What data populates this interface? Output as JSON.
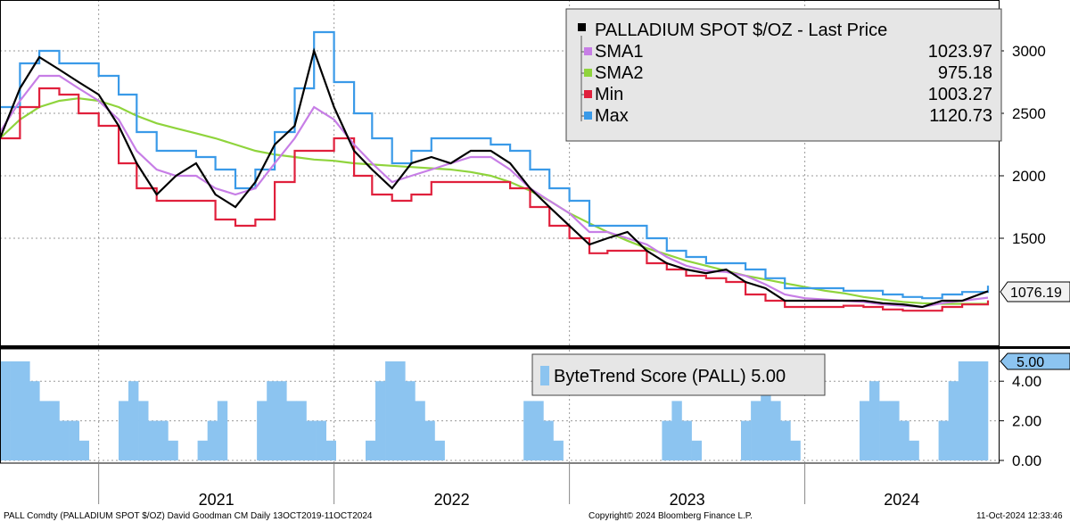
{
  "chart_data": [
    {
      "type": "line",
      "title": "PALLADIUM SPOT $/OZ - Last Price",
      "y_ticks": [
        "3000",
        "2500",
        "2000",
        "1500"
      ],
      "ylim": [
        850,
        3200
      ],
      "x_ticks": [
        "2021",
        "2022",
        "2023",
        "2024"
      ],
      "x": [
        "2020-08-01",
        "2020-09-01",
        "2020-10-01",
        "2020-11-01",
        "2020-12-01",
        "2021-01-01",
        "2021-02-01",
        "2021-03-01",
        "2021-04-01",
        "2021-05-01",
        "2021-06-01",
        "2021-07-01",
        "2021-08-01",
        "2021-09-01",
        "2021-10-01",
        "2021-11-01",
        "2021-12-01",
        "2022-01-01",
        "2022-02-01",
        "2022-03-01",
        "2022-04-01",
        "2022-05-01",
        "2022-06-01",
        "2022-07-01",
        "2022-08-01",
        "2022-09-01",
        "2022-10-01",
        "2022-11-01",
        "2022-12-01",
        "2023-01-01",
        "2023-02-01",
        "2023-03-01",
        "2023-04-01",
        "2023-05-01",
        "2023-06-01",
        "2023-07-01",
        "2023-08-01",
        "2023-09-01",
        "2023-10-01",
        "2023-11-01",
        "2023-12-01",
        "2024-01-01",
        "2024-02-01",
        "2024-03-01",
        "2024-04-01",
        "2024-05-01",
        "2024-06-01",
        "2024-07-01",
        "2024-08-01",
        "2024-09-01",
        "2024-10-11"
      ],
      "series": [
        {
          "name": "PALLADIUM SPOT $/OZ - Last Price",
          "color": "#000000",
          "last": "1076.19",
          "values": [
            2300,
            2700,
            2950,
            2850,
            2750,
            2650,
            2400,
            2100,
            1850,
            2000,
            2100,
            1850,
            1750,
            1950,
            2250,
            2400,
            3000,
            2550,
            2200,
            2050,
            1900,
            2100,
            2150,
            2100,
            2200,
            2200,
            2100,
            1900,
            1750,
            1600,
            1450,
            1500,
            1550,
            1400,
            1300,
            1250,
            1220,
            1250,
            1150,
            1100,
            1000,
            1000,
            1000,
            1000,
            1000,
            980,
            970,
            950,
            1000,
            1000,
            1076
          ]
        },
        {
          "name": "SMA1",
          "color": "#c77ee6",
          "last": "1023.97",
          "values": [
            2350,
            2600,
            2800,
            2800,
            2700,
            2600,
            2450,
            2200,
            2050,
            2000,
            2000,
            1900,
            1850,
            1900,
            2100,
            2300,
            2550,
            2450,
            2250,
            2100,
            1950,
            2000,
            2050,
            2100,
            2150,
            2150,
            2050,
            1900,
            1800,
            1700,
            1550,
            1550,
            1500,
            1450,
            1350,
            1280,
            1240,
            1230,
            1200,
            1130,
            1050,
            1020,
            1010,
            1000,
            990,
            970,
            960,
            950,
            980,
            1000,
            1024
          ]
        },
        {
          "name": "SMA2",
          "color": "#8fd43c",
          "last": "975.18",
          "values": [
            2300,
            2450,
            2550,
            2600,
            2620,
            2600,
            2550,
            2480,
            2420,
            2380,
            2340,
            2300,
            2250,
            2200,
            2170,
            2150,
            2130,
            2120,
            2100,
            2090,
            2080,
            2070,
            2060,
            2050,
            2030,
            2000,
            1950,
            1880,
            1800,
            1700,
            1620,
            1550,
            1480,
            1420,
            1370,
            1320,
            1280,
            1240,
            1200,
            1170,
            1140,
            1110,
            1080,
            1060,
            1030,
            1010,
            990,
            980,
            975,
            975,
            975
          ]
        },
        {
          "name": "Min",
          "color": "#e0203c",
          "last": "1003.27",
          "values": [
            2300,
            2550,
            2700,
            2650,
            2500,
            2400,
            2100,
            1900,
            1800,
            1800,
            1800,
            1650,
            1600,
            1650,
            1950,
            2200,
            2200,
            2300,
            2000,
            1850,
            1800,
            1850,
            1950,
            1950,
            1950,
            1950,
            1900,
            1750,
            1600,
            1500,
            1380,
            1400,
            1400,
            1300,
            1250,
            1200,
            1180,
            1150,
            1050,
            1000,
            950,
            950,
            950,
            960,
            950,
            930,
            920,
            920,
            950,
            970,
            1003
          ]
        },
        {
          "name": "Max",
          "color": "#3a9ae8",
          "last": "1120.73",
          "values": [
            2550,
            2900,
            3000,
            2900,
            2900,
            2800,
            2650,
            2350,
            2200,
            2200,
            2150,
            2050,
            1900,
            2050,
            2350,
            2700,
            3150,
            2750,
            2500,
            2300,
            2100,
            2200,
            2300,
            2300,
            2300,
            2250,
            2200,
            2050,
            1900,
            1800,
            1600,
            1600,
            1600,
            1500,
            1400,
            1350,
            1300,
            1300,
            1250,
            1180,
            1100,
            1100,
            1100,
            1080,
            1080,
            1050,
            1030,
            1020,
            1050,
            1070,
            1121
          ]
        }
      ],
      "legend_placement": "top-right"
    },
    {
      "type": "bar",
      "title": "ByteTrend Score (PALL) 5.00",
      "y_ticks": [
        "4.00",
        "2.00",
        "0.00"
      ],
      "ylim": [
        0,
        5
      ],
      "current": "5.00",
      "color": "#8cc4f0",
      "values": [
        5,
        5,
        5,
        4,
        3,
        3,
        2,
        2,
        1,
        0,
        0,
        0,
        3,
        4,
        3,
        2,
        2,
        1,
        0,
        0,
        1,
        2,
        3,
        0,
        0,
        0,
        3,
        4,
        4,
        3,
        3,
        2,
        2,
        1,
        0,
        0,
        0,
        1,
        4,
        5,
        5,
        4,
        3,
        2,
        1,
        0,
        0,
        0,
        0,
        0,
        0,
        0,
        0,
        3,
        3,
        2,
        1,
        0,
        0,
        0,
        0,
        0,
        0,
        0,
        0,
        0,
        0,
        2,
        3,
        2,
        1,
        0,
        0,
        0,
        0,
        2,
        3,
        4,
        3,
        2,
        1,
        0,
        0,
        0,
        0,
        0,
        0,
        3,
        4,
        3,
        3,
        2,
        1,
        0,
        0,
        2,
        4,
        5,
        5,
        5
      ]
    }
  ],
  "legend": {
    "title": "PALLADIUM SPOT $/OZ - Last Price",
    "items": [
      {
        "label": "SMA1",
        "value": "1023.97",
        "color": "#c77ee6"
      },
      {
        "label": "SMA2",
        "value": "975.18",
        "color": "#8fd43c"
      },
      {
        "label": "Min",
        "value": "1003.27",
        "color": "#e0203c"
      },
      {
        "label": "Max",
        "value": "1120.73",
        "color": "#3a9ae8"
      }
    ]
  },
  "price_badge": "1076.19",
  "score_legend": "ByteTrend Score (PALL) 5.00",
  "score_badge": "5.00",
  "footer": {
    "left": "PALL Comdty (PALLADIUM SPOT $/OZ) David Goodman CM  Daily 13OCT2019-11OCT2024",
    "center": "Copyright© 2024 Bloomberg Finance L.P.",
    "right": "11-Oct-2024 12:33:46"
  }
}
